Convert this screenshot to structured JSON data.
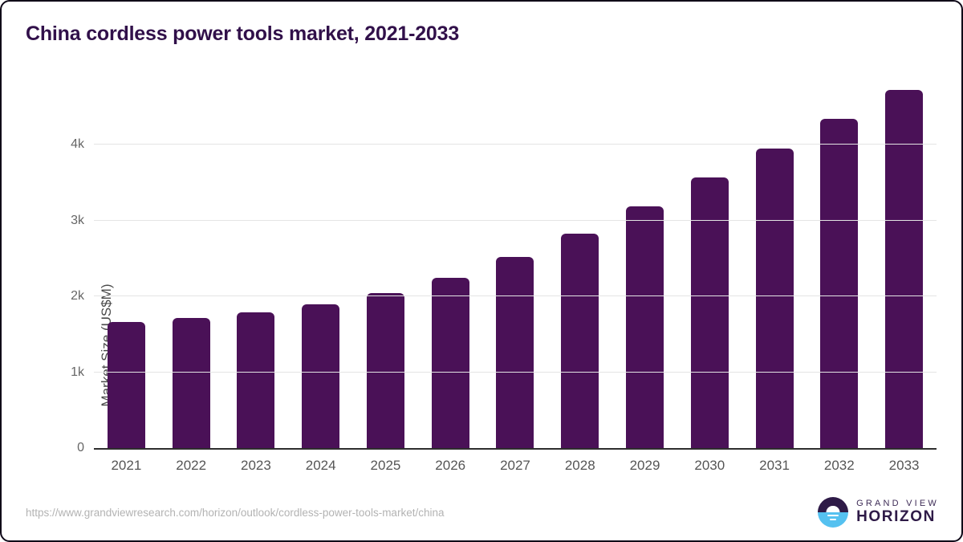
{
  "page": {
    "title": "China cordless power tools market, 2021-2033",
    "source_url": "https://www.grandviewresearch.com/horizon/outlook/cordless-power-tools-market/china"
  },
  "branding": {
    "name_top": "GRAND VIEW",
    "name_bottom": "HORIZON",
    "logo_dark_color": "#2e1a47",
    "logo_blue_color": "#55c1f0"
  },
  "colors": {
    "bar": "#4a1157",
    "title_text": "#31104a",
    "gridline": "#e4e4e4",
    "axis_line": "#2e2e2e",
    "tick_label": "#666666",
    "x_label": "#555555",
    "url_text": "#b3b3b3"
  },
  "chart_data": {
    "type": "bar",
    "title": "China cordless power tools market, 2021-2033",
    "xlabel": "",
    "ylabel": "Market Size (US$M)",
    "categories": [
      "2021",
      "2022",
      "2023",
      "2024",
      "2025",
      "2026",
      "2027",
      "2028",
      "2029",
      "2030",
      "2031",
      "2032",
      "2033"
    ],
    "values": [
      1663,
      1718,
      1792,
      1898,
      2045,
      2248,
      2518,
      2830,
      3186,
      3566,
      3948,
      4340,
      4721
    ],
    "ylim": [
      0,
      4830
    ],
    "yticks": [
      {
        "label": "0",
        "value": 0
      },
      {
        "label": "1k",
        "value": 1000
      },
      {
        "label": "2k",
        "value": 2000
      },
      {
        "label": "3k",
        "value": 3000
      },
      {
        "label": "4k",
        "value": 4000
      }
    ],
    "grid": "horizontal",
    "legend": "none",
    "bar_color": "#4a1157"
  }
}
